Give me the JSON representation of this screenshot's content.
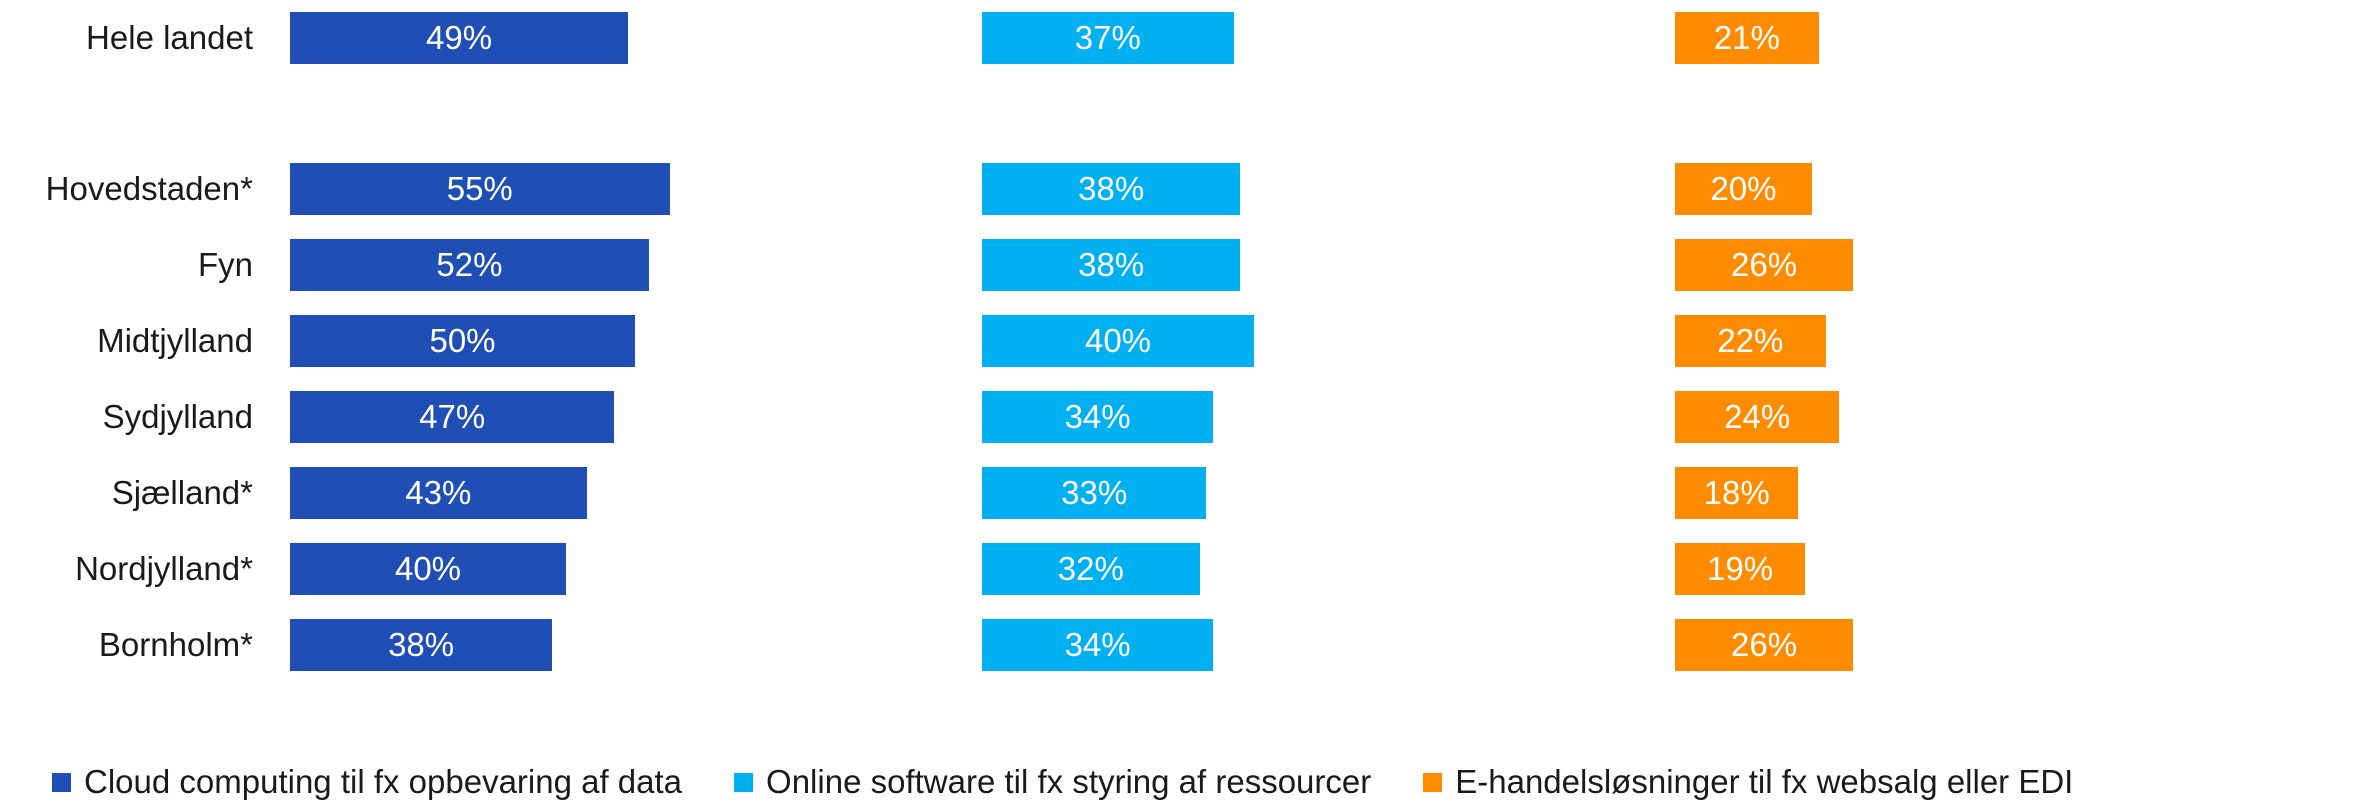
{
  "chart_data": {
    "type": "bar",
    "orientation": "horizontal",
    "categories": [
      "Hele landet",
      "Hovedstaden*",
      "Fyn",
      "Midtjylland",
      "Sydjylland",
      "Sjælland*",
      "Nordjylland*",
      "Bornholm*"
    ],
    "series": [
      {
        "name": "Cloud computing til fx opbevaring af data",
        "color": "#1f4fb5",
        "values": [
          49,
          55,
          52,
          50,
          47,
          43,
          40,
          38
        ],
        "labels": [
          "49%",
          "55%",
          "52%",
          "50%",
          "47%",
          "43%",
          "40%",
          "38%"
        ]
      },
      {
        "name": "Online software til fx styring af ressourcer",
        "color": "#00b0f0",
        "values": [
          37,
          38,
          38,
          40,
          34,
          33,
          32,
          34
        ],
        "labels": [
          "37%",
          "38%",
          "38%",
          "40%",
          "34%",
          "33%",
          "32%",
          "34%"
        ]
      },
      {
        "name": "E-handelsløsninger til fx websalg eller EDI",
        "color": "#ff8c00",
        "values": [
          21,
          20,
          26,
          22,
          24,
          18,
          19,
          26
        ],
        "labels": [
          "21%",
          "20%",
          "26%",
          "22%",
          "24%",
          "18%",
          "19%",
          "26%"
        ]
      }
    ],
    "value_unit": "%",
    "grid": false,
    "legend_position": "bottom"
  }
}
